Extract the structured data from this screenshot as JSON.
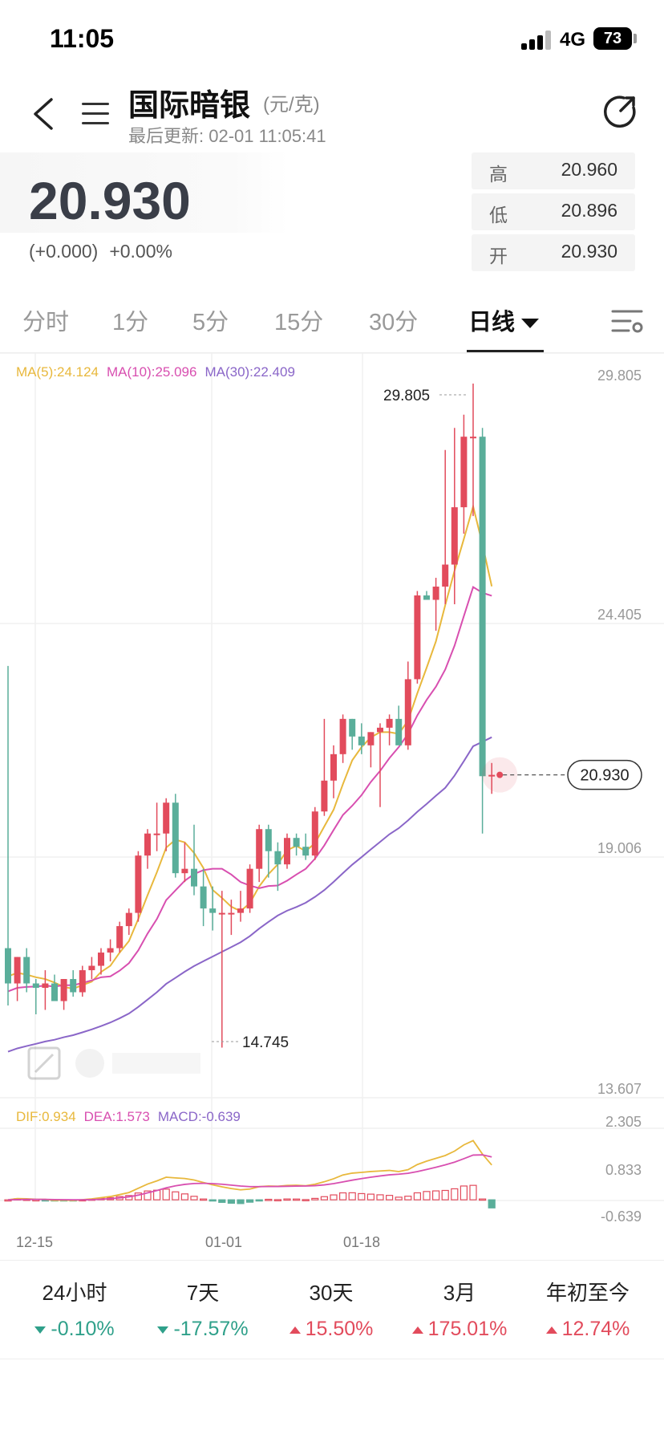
{
  "status_bar": {
    "time": "11:05",
    "network": "4G",
    "battery": "73"
  },
  "header": {
    "title": "国际暗银",
    "unit": "(元/克)",
    "updated": "最后更新: 02-01 11:05:41"
  },
  "quote": {
    "price": "20.930",
    "change_abs": "(+0.000)",
    "change_pct": "+0.00%",
    "high_label": "高",
    "high": "20.960",
    "low_label": "低",
    "low": "20.896",
    "open_label": "开",
    "open": "20.930"
  },
  "tabs": {
    "t1": "分时",
    "t2": "1分",
    "t3": "5分",
    "t4": "15分",
    "t5": "30分",
    "t6": "日线"
  },
  "legend": {
    "ma5": "MA(5):24.124",
    "ma10": "MA(10):25.096",
    "ma30": "MA(30):22.409",
    "dif": "DIF:0.934",
    "dea": "DEA:1.573",
    "macd": "MACD:-0.639"
  },
  "chart_labels": {
    "y_top": "29.805",
    "y_mid": "24.405",
    "y_low": "19.006",
    "y_bottom": "13.607",
    "max_label": "29.805",
    "min_label": "14.745",
    "current": "20.930",
    "macd_top": "2.305",
    "macd_mid": "0.833",
    "macd_bottom": "-0.639",
    "x1": "12-15",
    "x2": "01-01",
    "x3": "01-18"
  },
  "colors": {
    "up": "#e24b5c",
    "down": "#5aae9a",
    "ma5": "#e8b83c",
    "ma10": "#d84fb0",
    "ma30": "#8a66c8"
  },
  "stats": {
    "s1_label": "24小时",
    "s1_val": "-0.10%",
    "s2_label": "7天",
    "s2_val": "-17.57%",
    "s3_label": "30天",
    "s3_val": "15.50%",
    "s4_label": "3月",
    "s4_val": "175.01%",
    "s5_label": "年初至今",
    "s5_val": "12.74%"
  },
  "chart_data": {
    "type": "candlestick",
    "y_range": [
      13.607,
      29.805
    ],
    "x_tick_labels": [
      "12-15",
      "01-01",
      "01-18"
    ],
    "candles": [
      [
        17.0,
        23.4,
        15.7,
        16.2
      ],
      [
        16.2,
        16.8,
        15.8,
        16.8
      ],
      [
        16.8,
        17.0,
        16.0,
        16.2
      ],
      [
        16.2,
        16.3,
        15.5,
        16.1
      ],
      [
        16.1,
        16.5,
        15.6,
        16.2
      ],
      [
        16.2,
        16.4,
        15.8,
        15.8
      ],
      [
        15.8,
        16.3,
        15.6,
        16.3
      ],
      [
        16.3,
        16.5,
        15.9,
        16.0
      ],
      [
        16.0,
        16.6,
        15.9,
        16.5
      ],
      [
        16.5,
        16.8,
        16.3,
        16.6
      ],
      [
        16.6,
        17.0,
        16.4,
        16.9
      ],
      [
        16.9,
        17.2,
        16.7,
        17.0
      ],
      [
        17.0,
        17.6,
        16.9,
        17.5
      ],
      [
        17.5,
        17.9,
        17.3,
        17.8
      ],
      [
        17.8,
        19.2,
        17.6,
        19.1
      ],
      [
        19.1,
        19.7,
        18.8,
        19.6
      ],
      [
        19.6,
        20.3,
        19.2,
        19.6
      ],
      [
        19.6,
        20.4,
        19.2,
        20.3
      ],
      [
        20.3,
        20.5,
        18.6,
        18.7
      ],
      [
        18.7,
        19.4,
        18.5,
        18.8
      ],
      [
        18.8,
        19.8,
        18.2,
        18.4
      ],
      [
        18.4,
        18.8,
        17.5,
        17.9
      ],
      [
        17.9,
        18.4,
        17.4,
        17.8
      ],
      [
        17.8,
        18.3,
        14.745,
        17.8
      ],
      [
        17.8,
        18.1,
        17.3,
        17.8
      ],
      [
        17.8,
        18.3,
        17.6,
        17.9
      ],
      [
        17.9,
        18.9,
        17.8,
        18.8
      ],
      [
        18.8,
        19.8,
        18.5,
        19.7
      ],
      [
        19.7,
        19.8,
        18.6,
        19.2
      ],
      [
        19.2,
        19.4,
        18.3,
        18.9
      ],
      [
        18.9,
        19.6,
        18.8,
        19.5
      ],
      [
        19.5,
        19.6,
        19.1,
        19.3
      ],
      [
        19.3,
        19.6,
        19.0,
        19.1
      ],
      [
        19.1,
        20.2,
        19.0,
        20.1
      ],
      [
        20.1,
        22.2,
        20.0,
        20.8
      ],
      [
        20.8,
        21.6,
        20.4,
        21.4
      ],
      [
        21.4,
        22.3,
        21.2,
        22.2
      ],
      [
        22.2,
        22.2,
        21.5,
        21.8
      ],
      [
        21.8,
        22.1,
        21.4,
        21.6
      ],
      [
        21.6,
        21.9,
        21.1,
        21.9
      ],
      [
        21.9,
        22.1,
        20.2,
        22.0
      ],
      [
        22.0,
        22.3,
        21.6,
        22.2
      ],
      [
        22.2,
        22.5,
        21.7,
        21.6
      ],
      [
        21.6,
        23.5,
        21.5,
        23.1
      ],
      [
        23.1,
        25.1,
        23.0,
        25.0
      ],
      [
        25.0,
        25.1,
        24.9,
        24.9
      ],
      [
        24.9,
        25.4,
        24.2,
        25.2
      ],
      [
        25.2,
        28.3,
        24.8,
        25.7
      ],
      [
        25.7,
        28.8,
        24.8,
        27.0
      ],
      [
        27.0,
        29.1,
        26.4,
        28.6
      ],
      [
        28.6,
        29.805,
        26.8,
        28.6
      ],
      [
        28.6,
        28.8,
        19.6,
        20.9
      ],
      [
        20.9,
        21.2,
        20.5,
        20.93
      ]
    ],
    "current_price": 20.93,
    "series": [
      {
        "name": "MA(5)",
        "last": 24.124
      },
      {
        "name": "MA(10)",
        "last": 25.096
      },
      {
        "name": "MA(30)",
        "last": 22.409
      }
    ],
    "macd": {
      "range": [
        -0.639,
        2.305
      ],
      "dif_last": 0.934,
      "dea_last": 1.573,
      "macd_last": -0.639
    }
  }
}
